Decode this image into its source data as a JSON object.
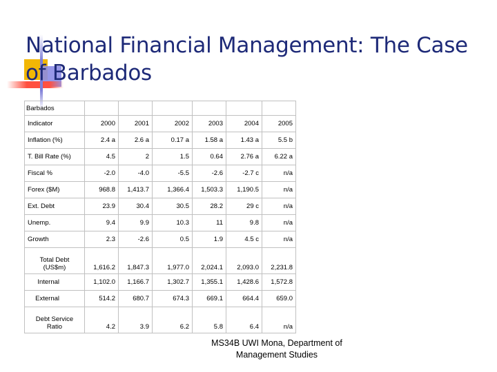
{
  "slide": {
    "title": "National Financial Management: The Case of Barbados",
    "accent_colors": {
      "title": "#1e2a78",
      "yellow": "#f2b705",
      "blue": "#8c8ce6",
      "red": "#ff5040"
    }
  },
  "table": {
    "caption": "Barbados",
    "header_label": "Indicator",
    "years": [
      "2000",
      "2001",
      "2002",
      "2003",
      "2004",
      "2005"
    ],
    "rows": [
      {
        "label": "Inflation (%)",
        "values": [
          "2.4 a",
          "2.6 a",
          "0.17 a",
          "1.58 a",
          "1.43 a",
          "5.5 b"
        ]
      },
      {
        "label": "T. Bill Rate (%)",
        "values": [
          "4.5",
          "2",
          "1.5",
          "0.64",
          "2.76 a",
          "6.22 a"
        ]
      },
      {
        "label": "Fiscal %",
        "values": [
          "-2.0",
          "-4.0",
          "-5.5",
          "-2.6",
          "-2.7 c",
          "n/a"
        ]
      },
      {
        "label": "Forex ($M)",
        "values": [
          "968.8",
          "1,413.7",
          "1,366.4",
          "1,503.3",
          "1,190.5",
          "n/a"
        ]
      },
      {
        "label": "Ext. Debt",
        "values": [
          "23.9",
          "30.4",
          "30.5",
          "28.2",
          "29 c",
          "n/a"
        ]
      },
      {
        "label": "Unemp.",
        "values": [
          "9.4",
          "9.9",
          "10.3",
          "11",
          "9.8",
          "n/a"
        ]
      },
      {
        "label": "Growth",
        "values": [
          "2.3",
          "-2.6",
          "0.5",
          "1.9",
          "4.5 c",
          "n/a"
        ]
      },
      {
        "label": "Total Debt (US$m)",
        "values": [
          "1,616.2",
          "1,847.3",
          "1,977.0",
          "2,024.1",
          "2,093.0",
          "2,231.8"
        ]
      },
      {
        "label": "Internal",
        "values": [
          "1,102.0",
          "1,166.7",
          "1,302.7",
          "1,355.1",
          "1,428.6",
          "1,572.8"
        ]
      },
      {
        "label": "External",
        "values": [
          "514.2",
          "680.7",
          "674.3",
          "669.1",
          "664.4",
          "659.0"
        ]
      },
      {
        "label": "Debt Service Ratio",
        "values": [
          "4.2",
          "3.9",
          "6.2",
          "5.8",
          "6.4",
          "n/a"
        ]
      }
    ]
  },
  "footer": {
    "line1": "MS34B UWI Mona, Department of",
    "line2": "Management Studies"
  }
}
